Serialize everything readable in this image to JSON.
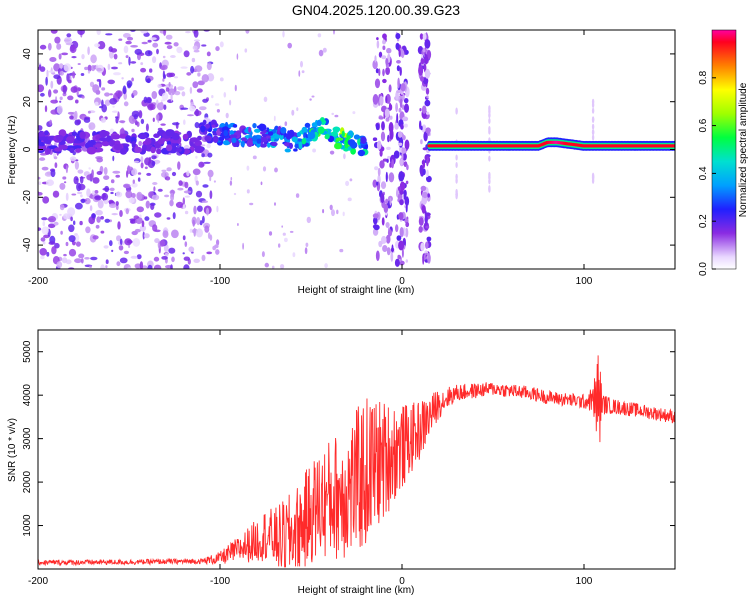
{
  "title": "GN04.2025.120.00.39.G23",
  "chart_data": [
    {
      "type": "heatmap",
      "xlabel": "Height of straight line (km)",
      "ylabel": "Frequency (Hz)",
      "xlim": [
        -200,
        150
      ],
      "ylim": [
        -50,
        50
      ],
      "xticks": [
        -200,
        -100,
        0,
        100
      ],
      "yticks": [
        -40,
        -20,
        0,
        20,
        40
      ],
      "colorbar": {
        "label": "Normalized spectral amplitude",
        "range": [
          0,
          1
        ],
        "ticks": [
          "0.0",
          "0.2",
          "0.4",
          "0.6",
          "0.8"
        ]
      },
      "ridge": {
        "x": [
          -110,
          -100,
          -90,
          -80,
          -70,
          -60,
          -50,
          -45,
          -40,
          -35,
          -30,
          -25,
          -20,
          15,
          30,
          50,
          75,
          80,
          85,
          90,
          100,
          110,
          125,
          150
        ],
        "freq": [
          8,
          7,
          6,
          6,
          5,
          3,
          7,
          9,
          8,
          5,
          3,
          2,
          1,
          1.5,
          1.5,
          1.5,
          1.5,
          3,
          3,
          2.5,
          1.5,
          1.5,
          1.5,
          1.5
        ],
        "amplitude": [
          0.2,
          0.25,
          0.3,
          0.3,
          0.35,
          0.3,
          0.45,
          0.55,
          0.45,
          0.5,
          0.55,
          0.5,
          0.4,
          0.95,
          0.95,
          0.95,
          0.95,
          0.95,
          1.0,
          0.95,
          0.95,
          0.95,
          0.95,
          0.95
        ]
      }
    },
    {
      "type": "line",
      "xlabel": "Height of straight line (km)",
      "ylabel": "SNR (10 * v/v)",
      "xlim": [
        -200,
        150
      ],
      "ylim": [
        0,
        5500
      ],
      "xticks": [
        -200,
        -100,
        0,
        100
      ],
      "yticks": [
        1000,
        2000,
        3000,
        4000,
        5000
      ],
      "color": "#ff2a2a",
      "series": [
        {
          "x": [
            -200,
            -150,
            -110,
            -100,
            -90,
            -80,
            -75,
            -70,
            -65,
            -60,
            -55,
            -50,
            -45,
            -40,
            -35,
            -30,
            -25,
            -20,
            -15,
            -10,
            -5,
            0,
            5,
            10,
            15,
            20,
            25,
            30,
            40,
            50,
            60,
            70,
            80,
            90,
            100,
            105,
            108,
            110,
            115,
            130,
            150
          ],
          "y": [
            150,
            160,
            180,
            250,
            450,
            650,
            800,
            700,
            700,
            800,
            1000,
            1300,
            1500,
            1600,
            1700,
            1800,
            2000,
            2200,
            2400,
            2500,
            2700,
            2800,
            3000,
            3200,
            3500,
            3800,
            3950,
            4050,
            4100,
            4150,
            4100,
            4050,
            3950,
            3900,
            3850,
            3900,
            3850,
            3800,
            3750,
            3650,
            3500
          ],
          "spread": [
            60,
            60,
            60,
            150,
            300,
            500,
            600,
            700,
            900,
            1000,
            1100,
            1200,
            1300,
            1400,
            1500,
            1600,
            1700,
            1800,
            1600,
            1400,
            1200,
            1000,
            800,
            700,
            500,
            350,
            250,
            200,
            180,
            160,
            160,
            160,
            160,
            160,
            170,
            300,
            1400,
            250,
            180,
            160,
            160
          ]
        }
      ]
    }
  ]
}
